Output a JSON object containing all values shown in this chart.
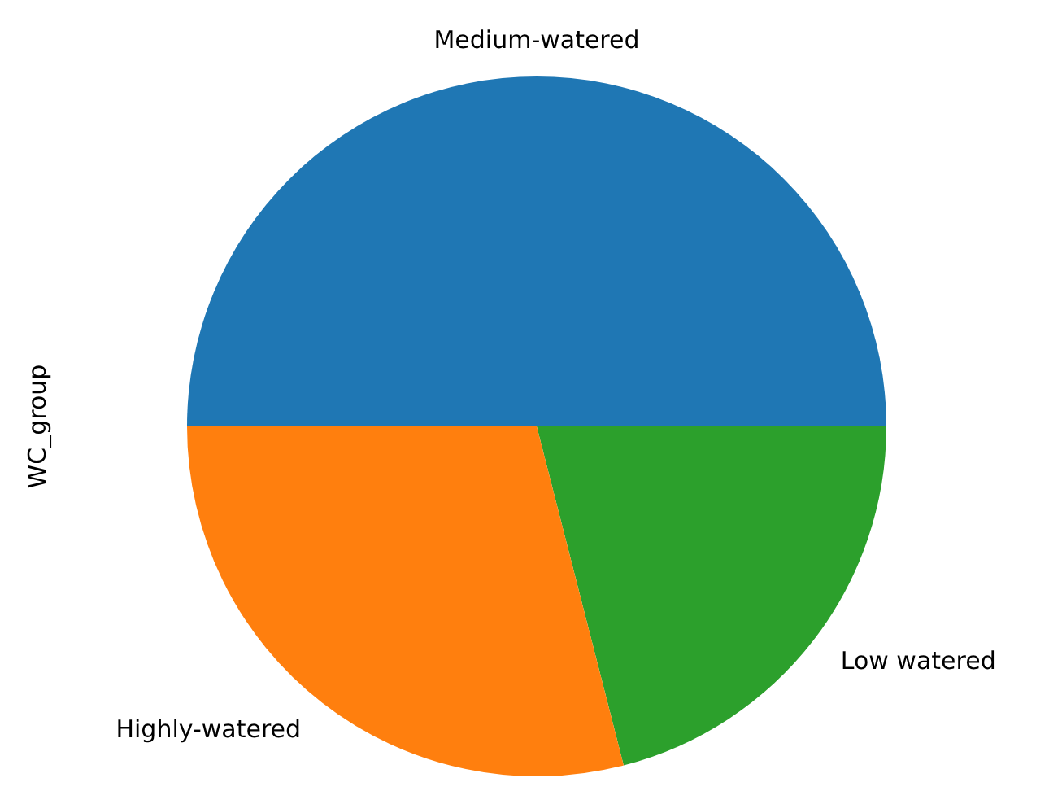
{
  "chart_data": {
    "type": "pie",
    "ylabel": "WC_group",
    "categories": [
      "Medium-watered",
      "Highly-watered",
      "Low watered"
    ],
    "values": [
      50,
      29,
      21
    ],
    "colors": [
      "#1f77b4",
      "#ff7f0e",
      "#2ca02c"
    ],
    "legend": false
  }
}
